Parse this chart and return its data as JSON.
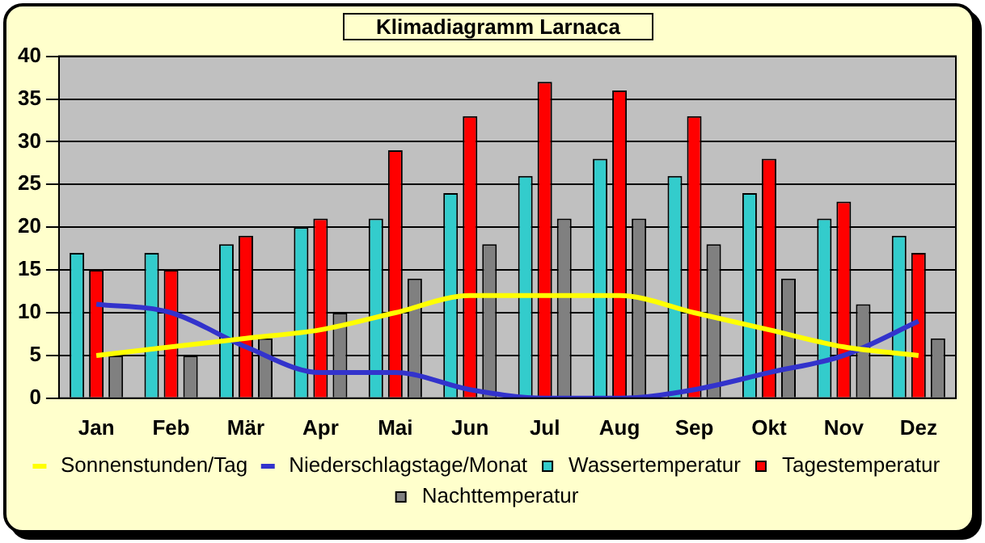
{
  "chart_data": {
    "type": "bar",
    "title": "Klimadiagramm Larnaca",
    "categories": [
      "Jan",
      "Feb",
      "Mär",
      "Apr",
      "Mai",
      "Jun",
      "Jul",
      "Aug",
      "Sep",
      "Okt",
      "Nov",
      "Dez"
    ],
    "series": [
      {
        "name": "Wassertemperatur",
        "color": "#33cccc",
        "values": [
          17,
          17,
          18,
          20,
          21,
          24,
          26,
          28,
          26,
          24,
          21,
          19
        ]
      },
      {
        "name": "Tagestemperatur",
        "color": "#ff0000",
        "values": [
          15,
          15,
          19,
          21,
          29,
          33,
          37,
          36,
          33,
          28,
          23,
          17
        ]
      },
      {
        "name": "Nachttemperatur",
        "color": "#808080",
        "values": [
          5,
          5,
          7,
          10,
          14,
          18,
          21,
          21,
          18,
          14,
          11,
          7
        ]
      },
      {
        "name": "Sonnenstunden/Tag",
        "type": "line",
        "color": "#ffff00",
        "values": [
          5,
          6,
          7,
          8,
          10,
          12,
          12,
          12,
          10,
          8,
          6,
          5
        ]
      },
      {
        "name": "Niederschlagstage/Monat",
        "type": "line",
        "color": "#3333cc",
        "values": [
          11,
          10,
          6,
          3,
          3,
          1,
          0,
          0,
          1,
          3,
          5,
          9
        ]
      }
    ],
    "ylim": [
      0,
      40
    ],
    "yticks": [
      0,
      5,
      10,
      15,
      20,
      25,
      30,
      35,
      40
    ],
    "grid": "y",
    "legend": "bottom",
    "marker": "none"
  }
}
